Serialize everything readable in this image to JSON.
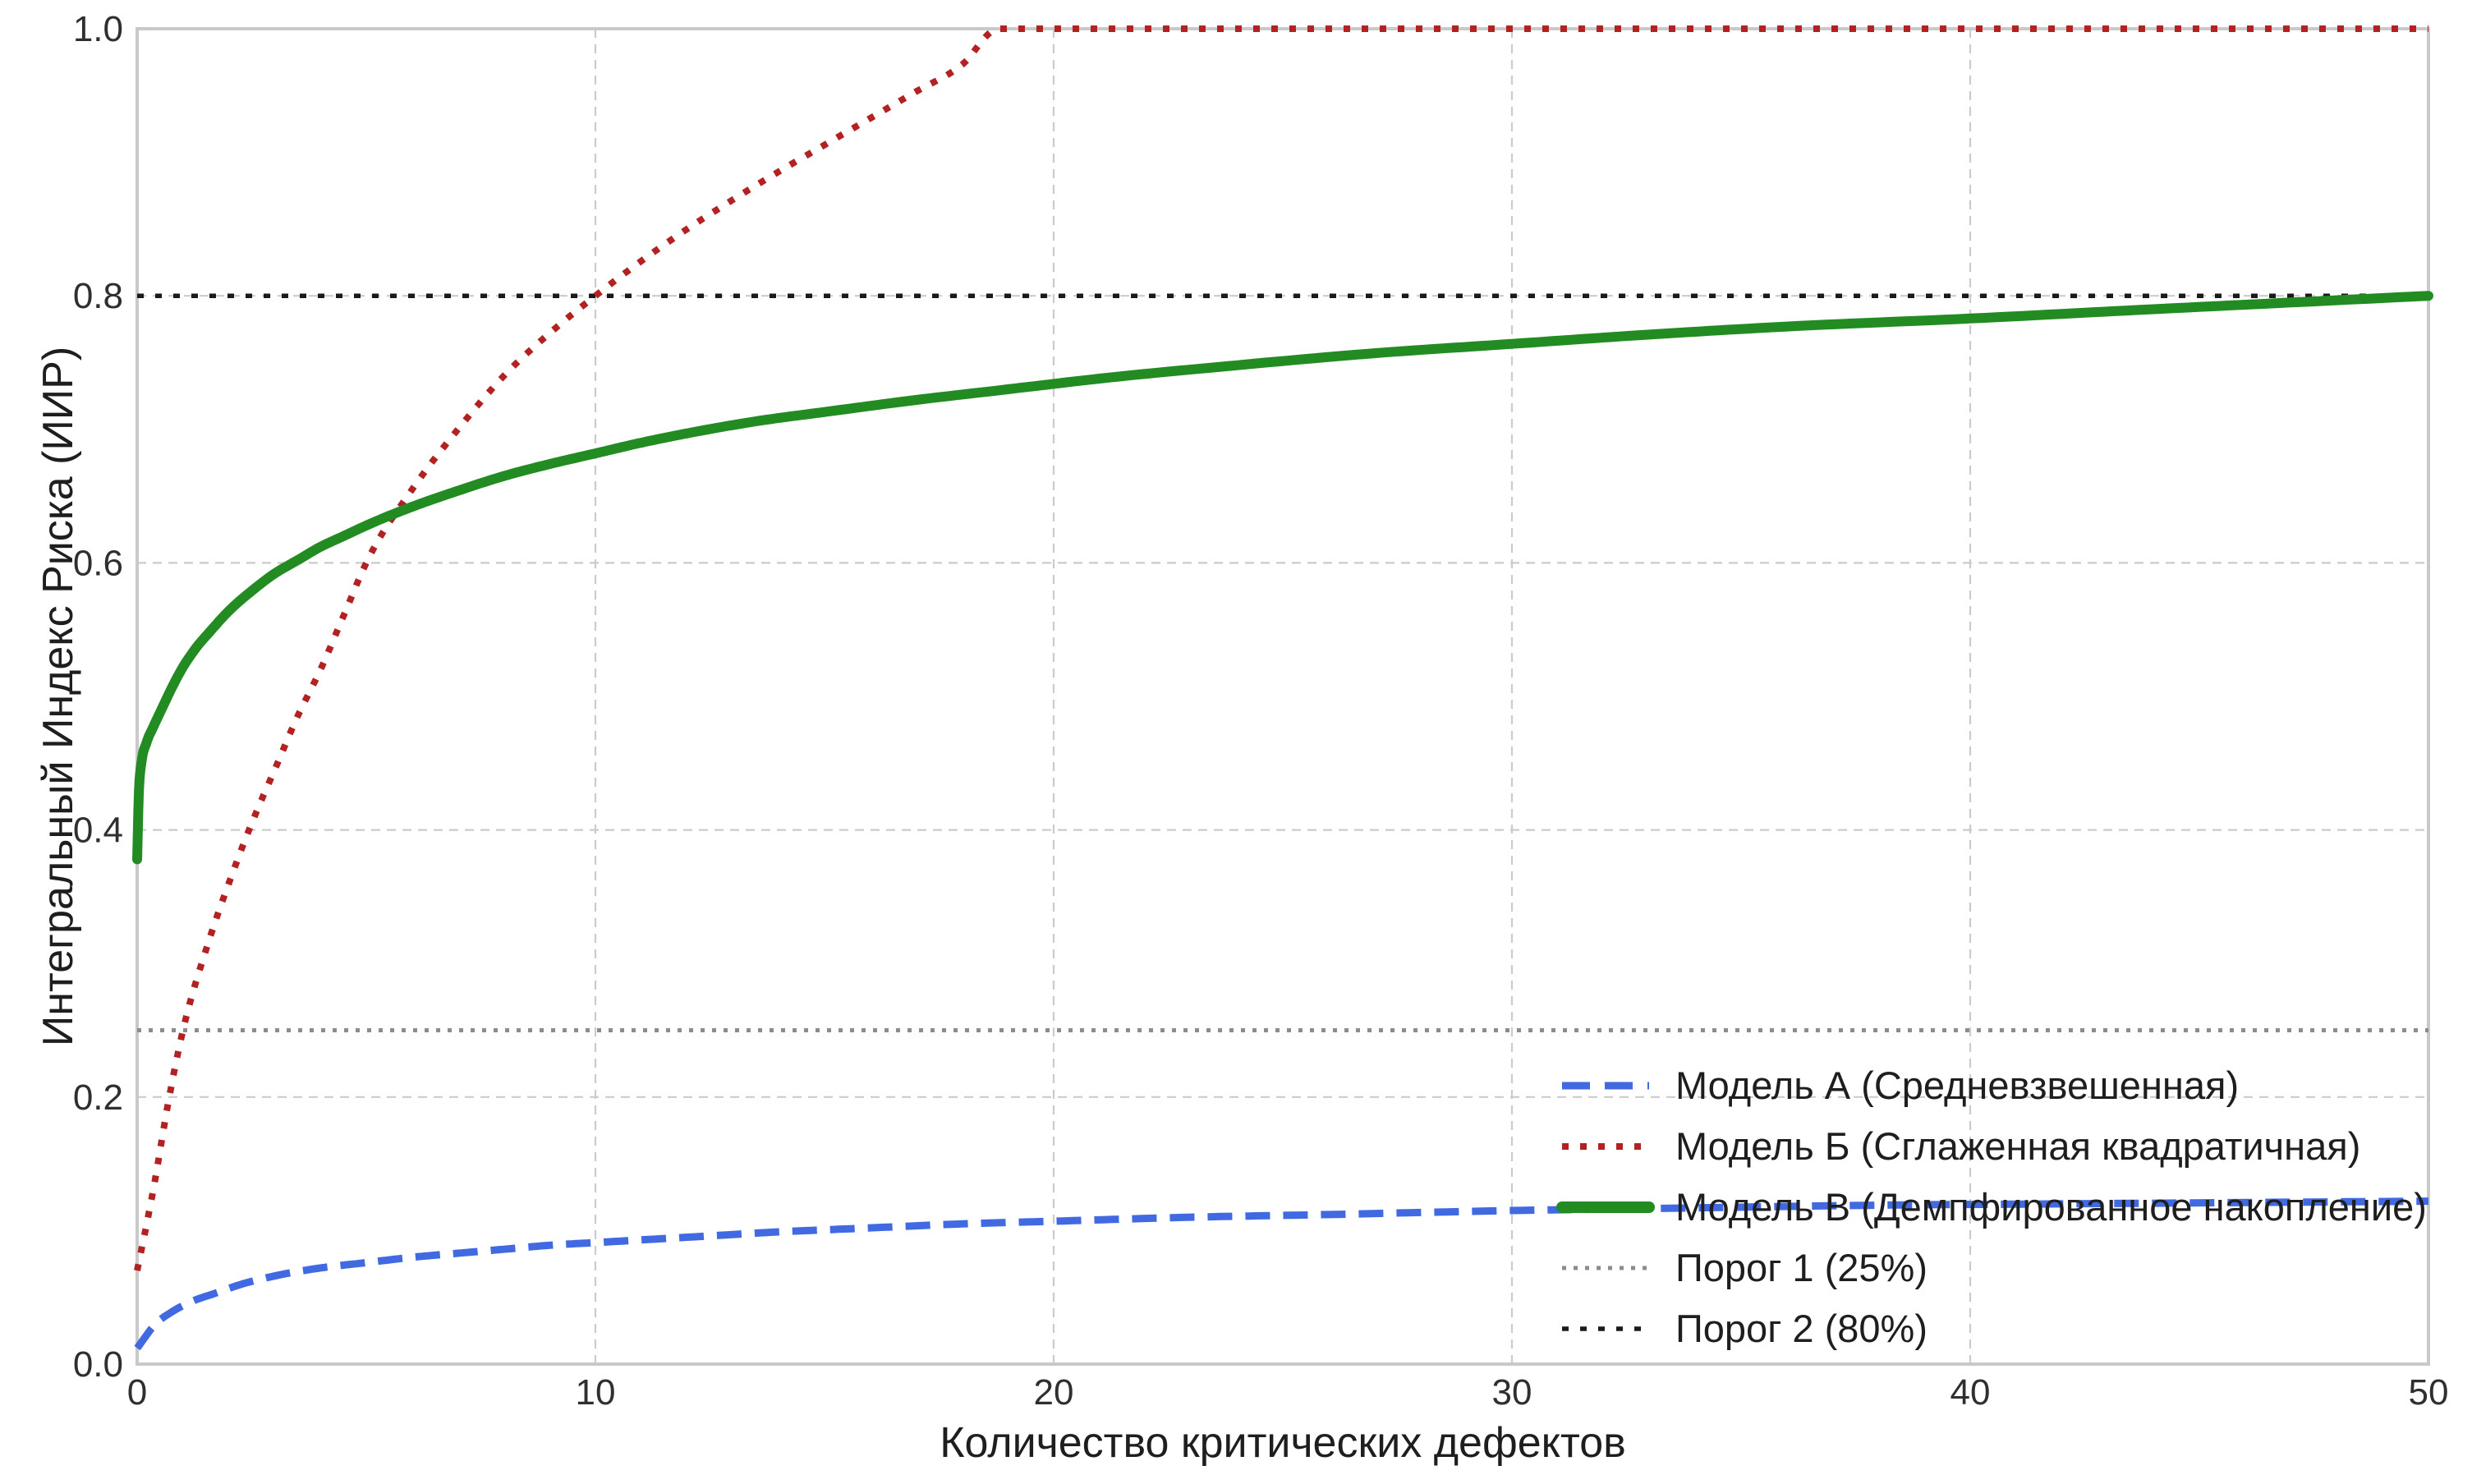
{
  "chart_data": {
    "type": "line",
    "title": "",
    "xlabel": "Количество критических дефектов",
    "ylabel": "Интегральный Индекс Риска (ИИР)",
    "xlim": [
      0,
      50
    ],
    "ylim": [
      0.0,
      1.0
    ],
    "grid": true,
    "legend_position": "lower right",
    "xticks": {
      "values": [
        0,
        10,
        20,
        30,
        40,
        50
      ],
      "labels": [
        "0",
        "10",
        "20",
        "30",
        "40",
        "50"
      ]
    },
    "yticks": {
      "values": [
        0.0,
        0.2,
        0.4,
        0.6,
        0.8,
        1.0
      ],
      "labels": [
        "0.0",
        "0.2",
        "0.4",
        "0.6",
        "0.8",
        "1.0"
      ]
    },
    "series": [
      {
        "name": "Модель А (Средневзвешенная)",
        "color": "#4169E1",
        "style": "dashed",
        "points": [
          [
            0,
            0.012
          ],
          [
            0.4,
            0.03
          ],
          [
            0.8,
            0.04
          ],
          [
            1.2,
            0.047
          ],
          [
            1.7,
            0.053
          ],
          [
            2.2,
            0.059
          ],
          [
            3,
            0.066
          ],
          [
            4,
            0.072
          ],
          [
            5,
            0.076
          ],
          [
            6,
            0.08
          ],
          [
            7,
            0.083
          ],
          [
            8,
            0.086
          ],
          [
            9,
            0.089
          ],
          [
            10,
            0.091
          ],
          [
            12,
            0.095
          ],
          [
            14,
            0.099
          ],
          [
            16,
            0.102
          ],
          [
            18,
            0.105
          ],
          [
            20,
            0.107
          ],
          [
            23,
            0.11
          ],
          [
            26,
            0.112
          ],
          [
            30,
            0.115
          ],
          [
            34,
            0.117
          ],
          [
            38,
            0.119
          ],
          [
            42,
            0.12
          ],
          [
            46,
            0.121
          ],
          [
            50,
            0.122
          ]
        ]
      },
      {
        "name": "Модель Б (Сглаженная квадратичная)",
        "color": "#B22222",
        "style": "dotted",
        "points": [
          [
            0,
            0.07
          ],
          [
            0.35,
            0.13
          ],
          [
            0.7,
            0.2
          ],
          [
            1,
            0.25
          ],
          [
            1.5,
            0.31
          ],
          [
            2,
            0.36
          ],
          [
            2.5,
            0.405
          ],
          [
            3,
            0.445
          ],
          [
            3.5,
            0.485
          ],
          [
            4,
            0.52
          ],
          [
            4.5,
            0.56
          ],
          [
            5,
            0.6
          ],
          [
            6,
            0.655
          ],
          [
            7,
            0.7
          ],
          [
            8,
            0.74
          ],
          [
            9,
            0.772
          ],
          [
            10,
            0.8
          ],
          [
            11,
            0.826
          ],
          [
            12,
            0.85
          ],
          [
            13,
            0.872
          ],
          [
            14,
            0.893
          ],
          [
            15,
            0.913
          ],
          [
            16,
            0.933
          ],
          [
            17,
            0.953
          ],
          [
            18,
            0.973
          ],
          [
            18.8,
            1.0
          ],
          [
            20,
            1.0
          ],
          [
            25,
            1.0
          ],
          [
            30,
            1.0
          ],
          [
            35,
            1.0
          ],
          [
            40,
            1.0
          ],
          [
            45,
            1.0
          ],
          [
            50,
            1.0
          ]
        ]
      },
      {
        "name": "Модель В (Демпфированное накопление)",
        "color": "#228B22",
        "style": "solid",
        "points": [
          [
            0,
            0.378
          ],
          [
            0.04,
            0.43
          ],
          [
            0.1,
            0.452
          ],
          [
            0.2,
            0.465
          ],
          [
            0.35,
            0.477
          ],
          [
            0.5,
            0.488
          ],
          [
            0.75,
            0.506
          ],
          [
            1,
            0.522
          ],
          [
            1.3,
            0.537
          ],
          [
            1.6,
            0.549
          ],
          [
            2,
            0.564
          ],
          [
            2.5,
            0.579
          ],
          [
            3,
            0.592
          ],
          [
            3.5,
            0.602
          ],
          [
            4,
            0.612
          ],
          [
            4.5,
            0.62
          ],
          [
            5,
            0.628
          ],
          [
            6,
            0.642
          ],
          [
            7,
            0.654
          ],
          [
            8,
            0.665
          ],
          [
            9,
            0.674
          ],
          [
            10,
            0.682
          ],
          [
            11,
            0.69
          ],
          [
            12,
            0.697
          ],
          [
            13.5,
            0.706
          ],
          [
            15,
            0.713
          ],
          [
            17,
            0.722
          ],
          [
            19,
            0.73
          ],
          [
            21,
            0.738
          ],
          [
            24,
            0.748
          ],
          [
            27,
            0.757
          ],
          [
            30,
            0.764
          ],
          [
            33,
            0.771
          ],
          [
            36,
            0.777
          ],
          [
            40,
            0.783
          ],
          [
            44,
            0.79
          ],
          [
            47,
            0.795
          ],
          [
            50,
            0.8
          ]
        ]
      }
    ],
    "thresholds": [
      {
        "name": "Порог 1 (25%)",
        "value": 0.25,
        "color": "#8C8C8C",
        "style": "dotted-small"
      },
      {
        "name": "Порог 2 (80%)",
        "value": 0.8,
        "color": "#1A1A1A",
        "style": "dotted"
      }
    ],
    "style_colors": {
      "grid": "#CBCBCB",
      "spine": "#C9C9C9",
      "tick_text": "#2f2f2f",
      "label_text": "#1e1e1e"
    }
  }
}
